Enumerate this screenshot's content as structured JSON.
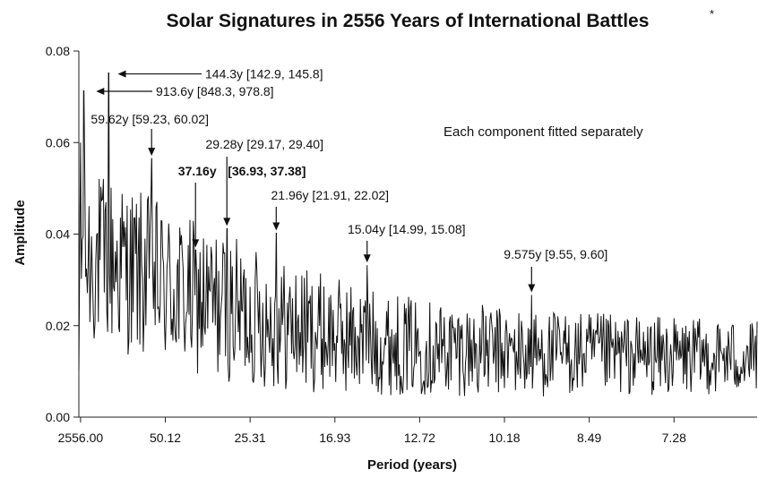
{
  "chart_data": {
    "type": "line",
    "title": "Solar Signatures in 2556 Years of International Battles",
    "title_marker": "*",
    "xlabel": "Period (years)",
    "ylabel": "Amplitude",
    "note": "Each component fitted separately",
    "ylim": [
      0,
      0.08
    ],
    "y_ticks": [
      {
        "value": 0,
        "label": "0.00"
      },
      {
        "value": 0.02,
        "label": "0.02"
      },
      {
        "value": 0.04,
        "label": "0.04"
      },
      {
        "value": 0.06,
        "label": "0.06"
      },
      {
        "value": 0.08,
        "label": "0.08"
      }
    ],
    "x_axis": {
      "scale": "frequency (cycles per 2556 years)",
      "domain_harmonics": [
        0,
        400
      ],
      "ticks": [
        {
          "harmonic": 1,
          "label": "2556.00"
        },
        {
          "harmonic": 51,
          "label": "50.12"
        },
        {
          "harmonic": 101,
          "label": "25.31"
        },
        {
          "harmonic": 151,
          "label": "16.93"
        },
        {
          "harmonic": 201,
          "label": "12.72"
        },
        {
          "harmonic": 251,
          "label": "10.18"
        },
        {
          "harmonic": 301,
          "label": "8.49"
        },
        {
          "harmonic": 351,
          "label": "7.28"
        }
      ]
    },
    "grid": false,
    "peaks": [
      {
        "harmonic": 2.8,
        "amplitude": 0.0713,
        "label": "913.6y [848.3, 978.8]",
        "bold": false
      },
      {
        "harmonic": 17.7,
        "amplitude": 0.0752,
        "label": "144.3y [142.9, 145.8]",
        "bold": false
      },
      {
        "harmonic": 42.9,
        "amplitude": 0.0565,
        "label": "59.62y [59.23, 60.02]",
        "bold": false
      },
      {
        "harmonic": 68.8,
        "amplitude": 0.0365,
        "label": "37.16y",
        "bold": true
      },
      {
        "harmonic": 87.3,
        "amplitude": 0.0412,
        "label": "29.28y [29.17, 29.40]",
        "bold": false
      },
      {
        "harmonic": 116.4,
        "amplitude": 0.0402,
        "label": "21.96y [21.91, 22.02]",
        "bold": false
      },
      {
        "harmonic": 170.0,
        "amplitude": 0.0332,
        "label": "15.04y [14.99, 15.08]",
        "bold": false
      },
      {
        "harmonic": 267.0,
        "amplitude": 0.0267,
        "label": "9.575y [9.55, 9.60]",
        "bold": false
      }
    ],
    "bold_interval_label": "[36.93, 37.38]",
    "series": [
      {
        "color": "#111111",
        "envelope": [
          {
            "harmonic": 0,
            "mean": 0.035,
            "spread": 0.012
          },
          {
            "harmonic": 20,
            "mean": 0.034,
            "spread": 0.012
          },
          {
            "harmonic": 60,
            "mean": 0.027,
            "spread": 0.011
          },
          {
            "harmonic": 120,
            "mean": 0.02,
            "spread": 0.009
          },
          {
            "harmonic": 180,
            "mean": 0.016,
            "spread": 0.007
          },
          {
            "harmonic": 260,
            "mean": 0.014,
            "spread": 0.006
          },
          {
            "harmonic": 400,
            "mean": 0.013,
            "spread": 0.005
          }
        ]
      }
    ]
  }
}
